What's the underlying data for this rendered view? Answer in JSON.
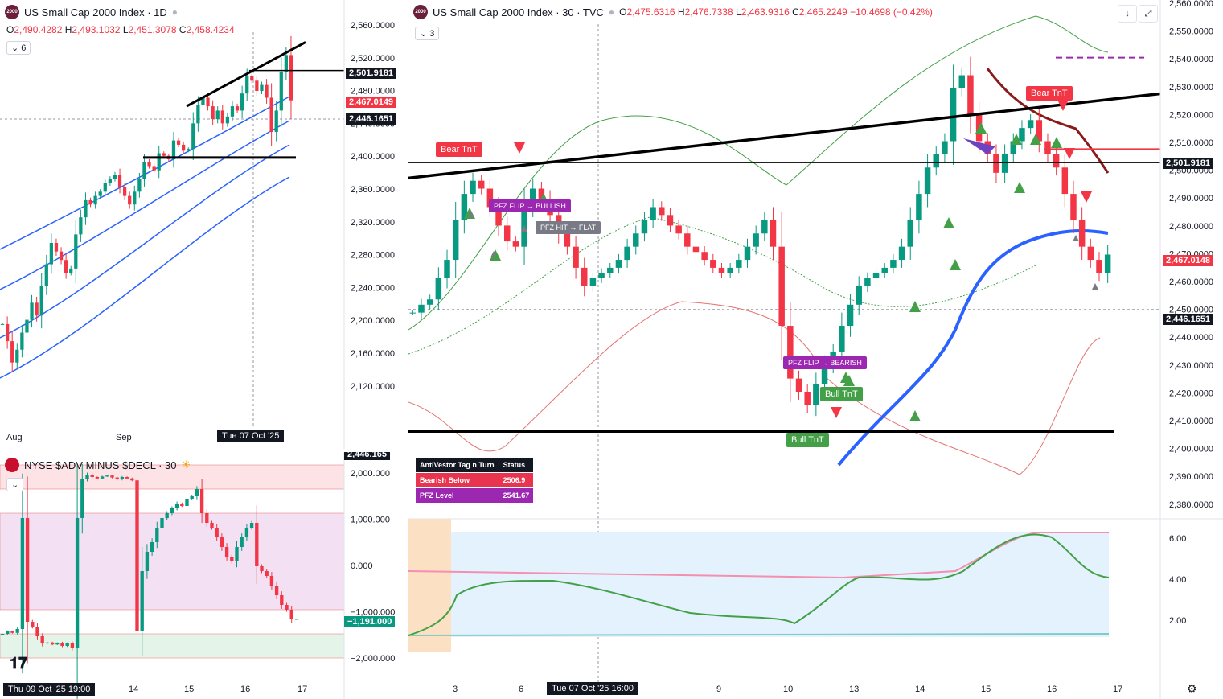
{
  "daily": {
    "title": "US Small Cap 2000 Index · 1D",
    "logo": "2000",
    "ohlc": {
      "o": "2,490.4282",
      "h": "2,493.1032",
      "l": "2,451.3078",
      "c": "2,458.4234"
    },
    "badge": "6",
    "y_ticks": [
      "2,560.0000",
      "2,520.0000",
      "2,480.0000",
      "2,440.0000",
      "2,400.0000",
      "2,360.0000",
      "2,320.0000",
      "2,280.0000",
      "2,240.0000",
      "2,200.0000",
      "2,160.0000",
      "2,120.0000"
    ],
    "price_labels": [
      {
        "text": "2,501.9181",
        "color": "#131722"
      },
      {
        "text": "2,467.0149",
        "color": "#f23645"
      },
      {
        "text": "2,446.1651",
        "color": "#131722"
      }
    ],
    "x_ticks": [
      "Aug",
      "Sep"
    ],
    "x_selected": "Tue 07 Oct '25",
    "chart_data": {
      "type": "candlestick",
      "ylim": [
        2090,
        2575
      ],
      "closes": [
        2205,
        2185,
        2160,
        2175,
        2195,
        2210,
        2230,
        2215,
        2250,
        2275,
        2300,
        2290,
        2280,
        2265,
        2270,
        2310,
        2330,
        2350,
        2345,
        2355,
        2360,
        2370,
        2375,
        2380,
        2365,
        2355,
        2345,
        2360,
        2375,
        2395,
        2390,
        2385,
        2405,
        2402,
        2398,
        2420,
        2415,
        2408,
        2410,
        2440,
        2462,
        2470,
        2460,
        2445,
        2455,
        2440,
        2448,
        2460,
        2455,
        2475,
        2495,
        2490,
        2478,
        2485,
        2470,
        2430,
        2455,
        2500,
        2520,
        2467
      ],
      "horizontals": [
        2501.9,
        2400.0
      ],
      "trendline": [
        [
          0.0,
          2460
        ],
        [
          1.0,
          2535
        ]
      ]
    }
  },
  "breadth": {
    "title": "NYSE $ADV MINUS $DECL · 30",
    "y_ticks": [
      "2,000.000",
      "1,000.000",
      "0.000",
      "−1,000.000",
      "−2,000.000"
    ],
    "last_value": "−1,191.000",
    "top_label": "2,446.165",
    "x_selected": "Thu 09 Oct '25   19:00",
    "x_ticks": [
      "14",
      "15",
      "16",
      "17"
    ],
    "chart_data": {
      "type": "candlestick",
      "ylim": [
        -2100,
        2100
      ],
      "zones": [
        {
          "from": 1500,
          "to": 2000,
          "color": "#fde3e5"
        },
        {
          "from": -1000,
          "to": 1000,
          "color": "#f3e0f2"
        },
        {
          "from": -2000,
          "to": -1500,
          "color": "#e5f4e9"
        }
      ],
      "closes": [
        -1500,
        -1450,
        -1480,
        -1400,
        900,
        -1250,
        -1350,
        -1550,
        -1700,
        -1680,
        -1720,
        -1690,
        -1750,
        -1700,
        -1800,
        900,
        1700,
        1800,
        1750,
        1720,
        1760,
        1780,
        1740,
        1700,
        1750,
        1720,
        1680,
        -1450,
        -200,
        200,
        400,
        700,
        900,
        1000,
        1100,
        1200,
        1150,
        1300,
        1350,
        1500,
        1000,
        800,
        700,
        500,
        300,
        100,
        0,
        300,
        500,
        700,
        800,
        -100,
        -200,
        -300,
        -500,
        -700,
        -900,
        -1000,
        -1200,
        -1191
      ]
    }
  },
  "main": {
    "title": "US Small Cap 2000 Index · 30 · TVC",
    "logo": "2000",
    "ohlc": {
      "o": "2,475.6316",
      "h": "2,476.7338",
      "l": "2,463.9316",
      "c": "2,465.2249",
      "chg": "−10.4698 (−0.42%)"
    },
    "badge": "3",
    "y_ticks": [
      "2,560.0000",
      "2,550.0000",
      "2,540.0000",
      "2,530.0000",
      "2,520.0000",
      "2,510.0000",
      "2,500.0000",
      "2,490.0000",
      "2,480.0000",
      "2,470.0000",
      "2,460.0000",
      "2,450.0000",
      "2,440.0000",
      "2,430.0000",
      "2,420.0000",
      "2,410.0000",
      "2,400.0000",
      "2,390.0000",
      "2,380.0000"
    ],
    "price_labels": [
      {
        "text": "2,501.9181",
        "color": "#131722"
      },
      {
        "text": "2,467.0148",
        "color": "#f23645"
      },
      {
        "text": "2,446.1651",
        "color": "#131722"
      }
    ],
    "x_ticks": [
      "3",
      "6",
      "9",
      "10",
      "13",
      "14",
      "15",
      "16",
      "17"
    ],
    "x_selected": "Tue 07 Oct '25   16:00",
    "signals": {
      "bear1": "Bear TnT",
      "bear2": "Bear TnT",
      "bull1": "Bull TnT",
      "bull2": "Bull TnT",
      "pfz_bull": "PFZ FLIP → BULLISH",
      "pfz_bear": "PFZ FLIP → BEARISH",
      "pfz_hit": "PFZ HIT → FLAT"
    },
    "table": {
      "header": [
        "AntiVestor Tag n Turn",
        "Status"
      ],
      "rows": [
        {
          "label": "Bearish Below",
          "value": "2506.9",
          "color": "#e8344e"
        },
        {
          "label": "PFZ Level",
          "value": "2541.67",
          "color": "#9c27b0"
        }
      ]
    },
    "osc_ticks": [
      "6.00",
      "4.00",
      "2.00"
    ],
    "chart_data": {
      "type": "candlestick",
      "ylim": [
        2372,
        2562
      ],
      "closes": [
        2445,
        2448,
        2450,
        2458,
        2465,
        2480,
        2490,
        2495,
        2492,
        2485,
        2478,
        2472,
        2470,
        2485,
        2492,
        2488,
        2482,
        2475,
        2470,
        2462,
        2455,
        2458,
        2460,
        2462,
        2465,
        2470,
        2475,
        2480,
        2485,
        2482,
        2478,
        2475,
        2470,
        2468,
        2465,
        2462,
        2460,
        2462,
        2465,
        2470,
        2475,
        2480,
        2470,
        2440,
        2420,
        2415,
        2410,
        2418,
        2425,
        2430,
        2440,
        2448,
        2455,
        2458,
        2460,
        2462,
        2465,
        2470,
        2480,
        2490,
        2500,
        2505,
        2510,
        2530,
        2535,
        2520,
        2510,
        2505,
        2498,
        2505,
        2510,
        2515,
        2518,
        2510,
        2505,
        2500,
        2490,
        2480,
        2470,
        2465,
        2460,
        2467
      ],
      "horizontals": [
        2501.9,
        2400.0,
        2507.0
      ],
      "pfz_level": 2541.67,
      "trendline": [
        [
          0.0,
          2496
        ],
        [
          1.0,
          2528
        ]
      ]
    }
  }
}
